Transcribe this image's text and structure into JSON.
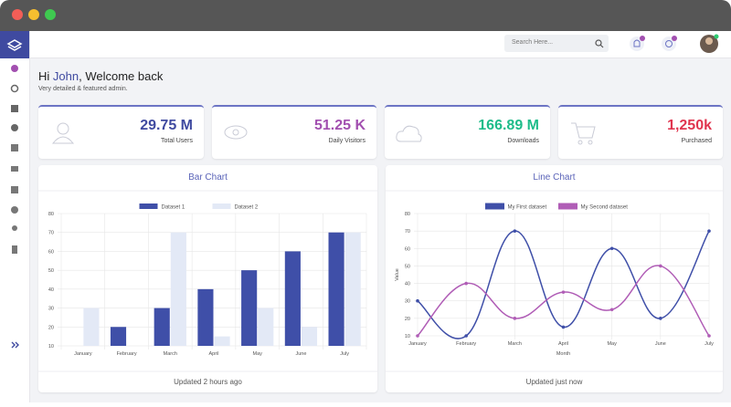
{
  "header": {
    "search_placeholder": "Search Here..."
  },
  "welcome": {
    "greeting": "Hi",
    "name": "John",
    "message": ", Welcome back",
    "subtitle": "Very detailed & featured admin."
  },
  "stats": [
    {
      "value": "29.75 M",
      "label": "Total Users",
      "color": "#3f4aa0"
    },
    {
      "value": "51.25 K",
      "label": "Daily Visitors",
      "color": "#a24fb0"
    },
    {
      "value": "166.89 M",
      "label": "Downloads",
      "color": "#1ebc8a"
    },
    {
      "value": "1,250k",
      "label": "Purchased",
      "color": "#e0354f"
    }
  ],
  "charts": [
    {
      "type": "bar",
      "title": "Bar Chart",
      "footer": "Updated 2 hours ago",
      "categories": [
        "January",
        "February",
        "March",
        "April",
        "May",
        "June",
        "July"
      ],
      "series": [
        {
          "name": "Dataset 1",
          "color": "#3f4fa8",
          "values": [
            10,
            20,
            30,
            40,
            50,
            60,
            70
          ]
        },
        {
          "name": "Dataset 2",
          "color": "#e3e9f6",
          "values": [
            30,
            10,
            70,
            15,
            30,
            20,
            70
          ]
        }
      ],
      "ylim": [
        10,
        80
      ],
      "yticks": [
        10,
        20,
        30,
        40,
        50,
        60,
        70,
        80
      ],
      "grid": true
    },
    {
      "type": "line",
      "title": "Line Chart",
      "footer": "Updated just now",
      "xlabel": "Month",
      "ylabel": "Value",
      "categories": [
        "January",
        "February",
        "March",
        "April",
        "May",
        "June",
        "July"
      ],
      "series": [
        {
          "name": "My First dataset",
          "color": "#3f4fa8",
          "values": [
            30,
            10,
            70,
            15,
            60,
            20,
            70
          ]
        },
        {
          "name": "My Second dataset",
          "color": "#b05db6",
          "values": [
            10,
            40,
            20,
            35,
            25,
            50,
            10
          ]
        }
      ],
      "ylim": [
        10,
        80
      ],
      "yticks": [
        10,
        20,
        30,
        40,
        50,
        60,
        70,
        80
      ],
      "grid": true
    }
  ]
}
